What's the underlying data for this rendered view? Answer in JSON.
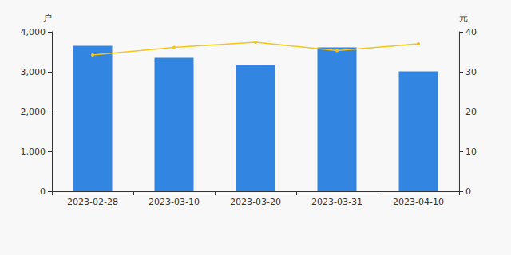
{
  "chart_data": {
    "type": "bar",
    "ylabel": "户",
    "y2label": "元",
    "categories": [
      "2023-02-28",
      "2023-03-10",
      "2023-03-20",
      "2023-03-31",
      "2023-04-10"
    ],
    "series": [
      {
        "type": "bar",
        "color": "#3385e2",
        "values": [
          3650,
          3350,
          3160,
          3610,
          3010
        ]
      },
      {
        "type": "line",
        "color": "#f5c518",
        "axis": "y2",
        "marker": "circle",
        "values": [
          34.2,
          36.1,
          37.4,
          35.3,
          37.0
        ]
      }
    ],
    "ylim": [
      0,
      4000
    ],
    "yticks": [
      0,
      {
        "value": 1000,
        "label": "1,000"
      },
      {
        "value": 2000,
        "label": "2,000"
      },
      {
        "value": 3000,
        "label": "3,000"
      },
      {
        "value": 4000,
        "label": "4,000"
      }
    ],
    "y2lim": [
      0,
      40
    ],
    "y2ticks": [
      0,
      10,
      20,
      30,
      40
    ],
    "grid": false
  }
}
